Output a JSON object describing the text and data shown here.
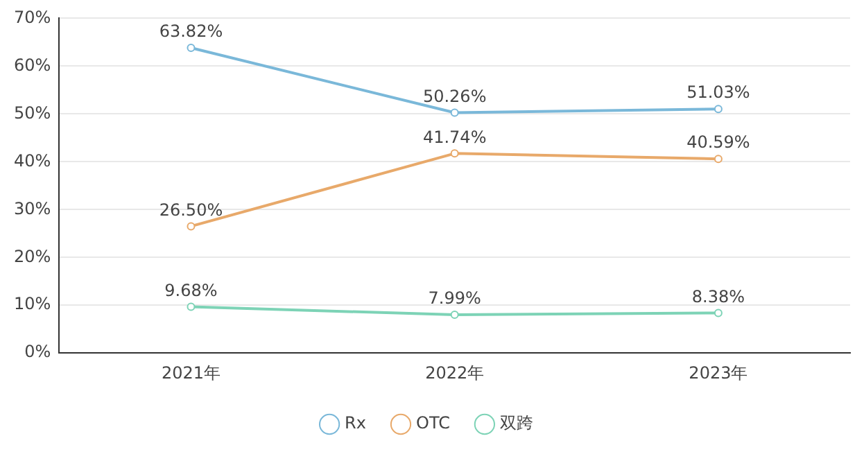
{
  "chart_data": {
    "type": "line",
    "categories": [
      "2021年",
      "2022年",
      "2023年"
    ],
    "series": [
      {
        "name": "Rx",
        "color": "#7ab8d9",
        "values": [
          63.82,
          50.26,
          51.03
        ],
        "value_labels": [
          "63.82%",
          "50.26%",
          "51.03%"
        ]
      },
      {
        "name": "OTC",
        "color": "#e8a96a",
        "values": [
          26.5,
          41.74,
          40.59
        ],
        "value_labels": [
          "26.50%",
          "41.74%",
          "40.59%"
        ]
      },
      {
        "name": "双跨",
        "color": "#7dd3b6",
        "values": [
          9.68,
          7.99,
          8.38
        ],
        "value_labels": [
          "9.68%",
          "7.99%",
          "8.38%"
        ]
      }
    ],
    "ylim": [
      0,
      70
    ],
    "yticks": [
      {
        "value": 0,
        "label": "0%"
      },
      {
        "value": 10,
        "label": "10%"
      },
      {
        "value": 20,
        "label": "20%"
      },
      {
        "value": 30,
        "label": "30%"
      },
      {
        "value": 40,
        "label": "40%"
      },
      {
        "value": 50,
        "label": "50%"
      },
      {
        "value": 60,
        "label": "60%"
      },
      {
        "value": 70,
        "label": "70%"
      }
    ],
    "grid": "y",
    "legend": "bottom",
    "marker": "circle",
    "line_style": "solid"
  }
}
